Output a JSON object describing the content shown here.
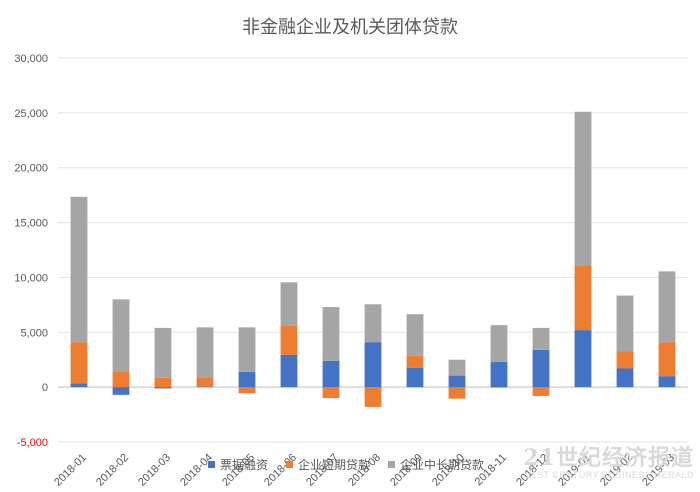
{
  "chart_data": {
    "type": "bar",
    "stacked": true,
    "title": "非金融企业及机关团体贷款",
    "categories": [
      "2018-01",
      "2018-02",
      "2018-03",
      "2018-04",
      "2018-05",
      "2018-06",
      "2018-07",
      "2018-08",
      "2018-09",
      "2018-10",
      "2018-11",
      "2018-12",
      "2019-01",
      "2019-02",
      "2019-03"
    ],
    "series": [
      {
        "name": "票据融资",
        "color": "#4472C4",
        "values": [
          350,
          -700,
          -120,
          50,
          1400,
          2950,
          2400,
          4100,
          1750,
          1050,
          2300,
          3400,
          5200,
          1700,
          1000
        ]
      },
      {
        "name": "企业短期贷款",
        "color": "#ED7D31",
        "values": [
          3750,
          1450,
          850,
          850,
          -550,
          2650,
          -1000,
          -1800,
          1100,
          -1050,
          -50,
          -800,
          5900,
          1550,
          3100
        ]
      },
      {
        "name": "企业中长期贷款",
        "color": "#A5A5A5",
        "values": [
          13250,
          6550,
          4550,
          4550,
          4050,
          3950,
          4900,
          3450,
          3800,
          1450,
          3350,
          2000,
          14000,
          5100,
          6450
        ]
      }
    ],
    "ylim": [
      -5000,
      30000
    ],
    "yticks": [
      -5000,
      0,
      5000,
      10000,
      15000,
      20000,
      25000,
      30000
    ],
    "ytick_labels": [
      "-5,000",
      "0",
      "5,000",
      "10,000",
      "15,000",
      "20,000",
      "25,000",
      "30,000"
    ],
    "grid": true,
    "legend": "bottom"
  },
  "watermark": {
    "main": "21世纪经济报道",
    "sub": "21ST CENTURY BUSINESS HERALD"
  }
}
